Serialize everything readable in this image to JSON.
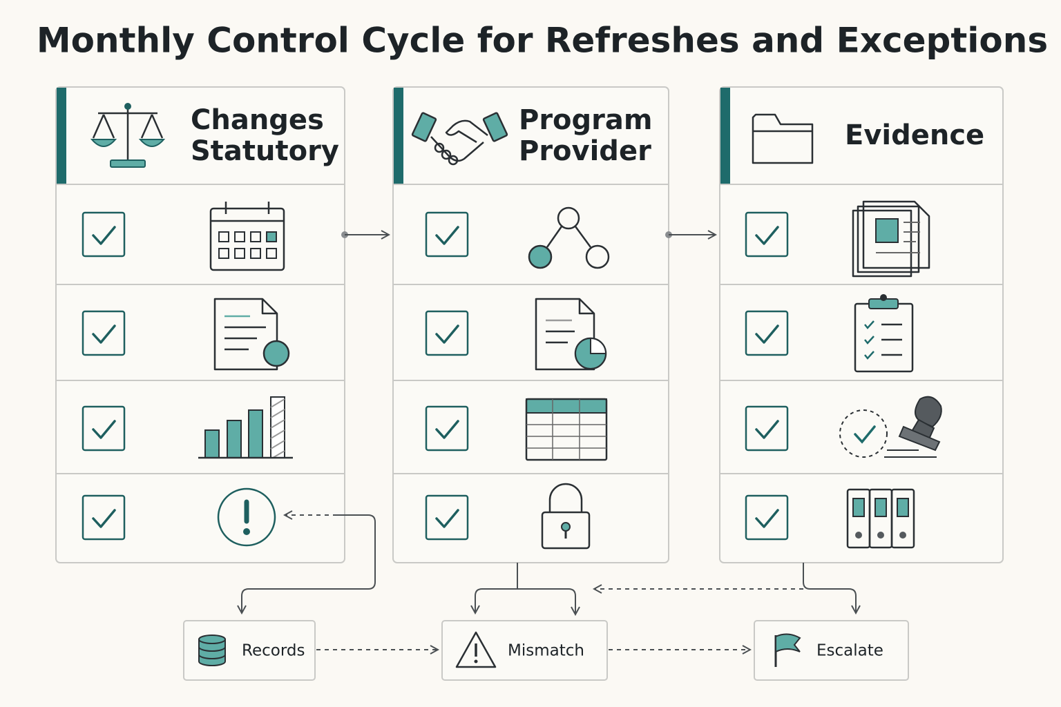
{
  "title": "Monthly Control Cycle for Refreshes and Exceptions",
  "columns": [
    {
      "title_lines": [
        "Changes",
        "Statutory"
      ]
    },
    {
      "title_lines": [
        "Program",
        "Provider"
      ]
    },
    {
      "title_lines": [
        "Evidence"
      ]
    }
  ],
  "outcomes": [
    {
      "label": "Records"
    },
    {
      "label": "Mismatch"
    },
    {
      "label": "Escalate"
    }
  ]
}
